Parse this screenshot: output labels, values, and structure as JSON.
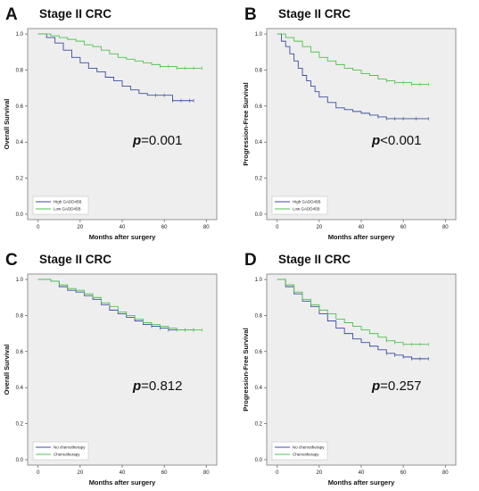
{
  "colors": {
    "blue": "#3b4d9c",
    "green": "#4fc24f",
    "plot_bg": "#eeeeee",
    "frame": "#7a7a7a"
  },
  "chart_data": [
    {
      "type": "line",
      "panel_letter": "A",
      "title": "Stage II CRC",
      "xlabel": "Months after surgery",
      "ylabel": "Overall Survival",
      "xlim": [
        -5,
        85
      ],
      "ylim": [
        -0.03,
        1.03
      ],
      "xticks": [
        "0",
        "20",
        "40",
        "60",
        "80"
      ],
      "yticks": [
        "0.0",
        "0.2",
        "0.4",
        "0.6",
        "0.8",
        "1.0"
      ],
      "p_prefix": "p",
      "p_value": "=0.001",
      "legend_position": "bottom-left",
      "series": [
        {
          "name": "High GADD45B",
          "color": "#3b4d9c",
          "x": [
            0,
            4,
            8,
            12,
            16,
            20,
            24,
            28,
            32,
            36,
            40,
            44,
            48,
            52,
            56,
            60,
            64,
            68,
            72,
            74
          ],
          "y": [
            1.0,
            0.98,
            0.95,
            0.91,
            0.87,
            0.84,
            0.81,
            0.79,
            0.76,
            0.74,
            0.71,
            0.69,
            0.67,
            0.66,
            0.66,
            0.66,
            0.63,
            0.63,
            0.63,
            0.63
          ]
        },
        {
          "name": "Low GADD45B",
          "color": "#4fc24f",
          "x": [
            0,
            6,
            10,
            14,
            18,
            22,
            26,
            30,
            34,
            38,
            42,
            46,
            50,
            54,
            58,
            62,
            66,
            70,
            74,
            78
          ],
          "y": [
            1.0,
            0.99,
            0.98,
            0.97,
            0.96,
            0.94,
            0.93,
            0.91,
            0.89,
            0.87,
            0.86,
            0.85,
            0.84,
            0.83,
            0.82,
            0.82,
            0.81,
            0.81,
            0.81,
            0.81
          ]
        }
      ]
    },
    {
      "type": "line",
      "panel_letter": "B",
      "title": "Stage II CRC",
      "xlabel": "Months after surgery",
      "ylabel": "Progression-Free Survival",
      "xlim": [
        -5,
        85
      ],
      "ylim": [
        -0.03,
        1.03
      ],
      "xticks": [
        "0",
        "20",
        "40",
        "60",
        "80"
      ],
      "yticks": [
        "0.0",
        "0.2",
        "0.4",
        "0.6",
        "0.8",
        "1.0"
      ],
      "p_prefix": "p",
      "p_value": "<0.001",
      "legend_position": "bottom-left",
      "series": [
        {
          "name": "High GADD45B",
          "color": "#3b4d9c",
          "x": [
            0,
            2,
            4,
            6,
            8,
            10,
            12,
            14,
            16,
            18,
            20,
            24,
            28,
            32,
            36,
            40,
            44,
            48,
            52,
            56,
            60,
            66,
            72
          ],
          "y": [
            1.0,
            0.96,
            0.93,
            0.89,
            0.85,
            0.81,
            0.77,
            0.74,
            0.71,
            0.68,
            0.65,
            0.62,
            0.59,
            0.58,
            0.57,
            0.56,
            0.55,
            0.54,
            0.53,
            0.53,
            0.53,
            0.53,
            0.53
          ]
        },
        {
          "name": "Low GADD45B",
          "color": "#4fc24f",
          "x": [
            0,
            4,
            8,
            12,
            16,
            20,
            24,
            28,
            32,
            36,
            40,
            44,
            48,
            52,
            56,
            60,
            64,
            68,
            72
          ],
          "y": [
            1.0,
            0.98,
            0.96,
            0.93,
            0.9,
            0.87,
            0.85,
            0.83,
            0.81,
            0.8,
            0.78,
            0.77,
            0.75,
            0.74,
            0.73,
            0.73,
            0.72,
            0.72,
            0.72
          ]
        }
      ]
    },
    {
      "type": "line",
      "panel_letter": "C",
      "title": "Stage II CRC",
      "xlabel": "Months after surgery",
      "ylabel": "Overall Survival",
      "xlim": [
        -5,
        85
      ],
      "ylim": [
        -0.03,
        1.03
      ],
      "xticks": [
        "0",
        "20",
        "40",
        "60",
        "80"
      ],
      "yticks": [
        "0.0",
        "0.2",
        "0.4",
        "0.6",
        "0.8",
        "1.0"
      ],
      "p_prefix": "p",
      "p_value": "=0.812",
      "legend_position": "bottom-left",
      "series": [
        {
          "name": "No chemotherapy",
          "color": "#3b4d9c",
          "x": [
            0,
            6,
            10,
            14,
            18,
            22,
            26,
            30,
            34,
            38,
            42,
            46,
            50,
            54,
            58,
            62,
            66,
            70,
            74
          ],
          "y": [
            1.0,
            0.99,
            0.96,
            0.94,
            0.93,
            0.91,
            0.89,
            0.86,
            0.83,
            0.81,
            0.79,
            0.77,
            0.75,
            0.74,
            0.73,
            0.72,
            0.72,
            0.72,
            0.72
          ]
        },
        {
          "name": "Chemotherapy",
          "color": "#4fc24f",
          "x": [
            0,
            6,
            10,
            14,
            18,
            22,
            26,
            30,
            34,
            38,
            42,
            46,
            50,
            54,
            58,
            62,
            66,
            70,
            74,
            78
          ],
          "y": [
            1.0,
            0.99,
            0.97,
            0.95,
            0.94,
            0.92,
            0.9,
            0.87,
            0.85,
            0.82,
            0.8,
            0.78,
            0.76,
            0.75,
            0.74,
            0.73,
            0.72,
            0.72,
            0.72,
            0.72
          ]
        }
      ]
    },
    {
      "type": "line",
      "panel_letter": "D",
      "title": "Stage II CRC",
      "xlabel": "Months after surgery",
      "ylabel": "Progression-Free Survival",
      "xlim": [
        -5,
        85
      ],
      "ylim": [
        -0.03,
        1.03
      ],
      "xticks": [
        "0",
        "20",
        "40",
        "60",
        "80"
      ],
      "yticks": [
        "0.0",
        "0.2",
        "0.4",
        "0.6",
        "0.8",
        "1.0"
      ],
      "p_prefix": "p",
      "p_value": "=0.257",
      "legend_position": "bottom-left",
      "series": [
        {
          "name": "No chemotherapy",
          "color": "#3b4d9c",
          "x": [
            0,
            4,
            8,
            12,
            16,
            20,
            24,
            28,
            32,
            36,
            40,
            44,
            48,
            52,
            56,
            60,
            64,
            68,
            72
          ],
          "y": [
            1.0,
            0.96,
            0.92,
            0.88,
            0.85,
            0.81,
            0.77,
            0.73,
            0.7,
            0.67,
            0.65,
            0.63,
            0.61,
            0.59,
            0.58,
            0.57,
            0.56,
            0.56,
            0.56
          ]
        },
        {
          "name": "Chemotherapy",
          "color": "#4fc24f",
          "x": [
            0,
            4,
            8,
            12,
            16,
            20,
            24,
            28,
            32,
            36,
            40,
            44,
            48,
            52,
            56,
            60,
            64,
            68,
            72
          ],
          "y": [
            1.0,
            0.97,
            0.93,
            0.89,
            0.86,
            0.83,
            0.81,
            0.78,
            0.76,
            0.74,
            0.72,
            0.7,
            0.68,
            0.66,
            0.65,
            0.64,
            0.64,
            0.64,
            0.64
          ]
        }
      ]
    }
  ]
}
